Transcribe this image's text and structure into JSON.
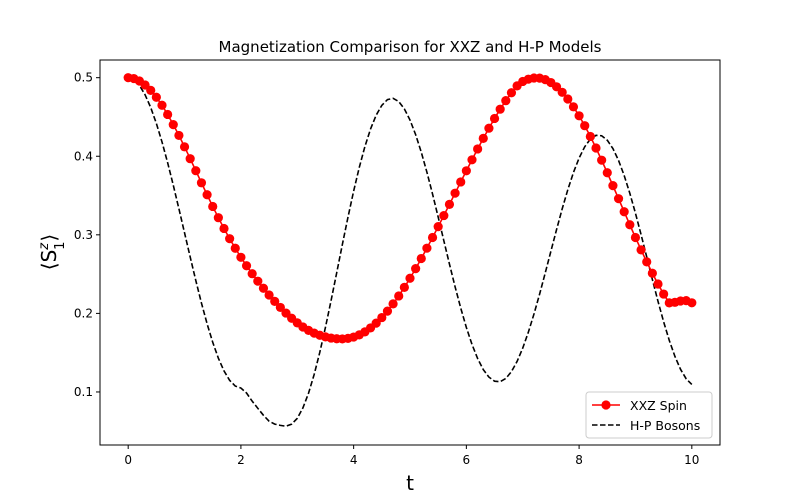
{
  "chart_data": {
    "type": "line",
    "title": "Magnetization Comparison for XXZ and H-P Models",
    "xlabel": "t",
    "ylabel_main": "⟨S",
    "ylabel_sup": "z",
    "ylabel_sub": "1",
    "ylabel_end": "⟩",
    "xlim": [
      -0.5,
      10.5
    ],
    "ylim": [
      0.0325,
      0.5225
    ],
    "x_ticks": [
      0,
      2,
      4,
      6,
      8,
      10
    ],
    "x_tick_labels": [
      "0",
      "2",
      "4",
      "6",
      "8",
      "10"
    ],
    "y_ticks": [
      0.1,
      0.2,
      0.3,
      0.4,
      0.5
    ],
    "y_tick_labels": [
      "0.1",
      "0.2",
      "0.3",
      "0.4",
      "0.5"
    ],
    "grid": false,
    "legend_position": "lower-right",
    "x": [
      0.0,
      0.1,
      0.2,
      0.3,
      0.4,
      0.5,
      0.6,
      0.7,
      0.8,
      0.9,
      1.0,
      1.1,
      1.2,
      1.3,
      1.4,
      1.5,
      1.6,
      1.7,
      1.8,
      1.9,
      2.0,
      2.1,
      2.2,
      2.3,
      2.4,
      2.5,
      2.6,
      2.7,
      2.8,
      2.9,
      3.0,
      3.1,
      3.2,
      3.3,
      3.4,
      3.5,
      3.6,
      3.7,
      3.8,
      3.9,
      4.0,
      4.1,
      4.2,
      4.3,
      4.4,
      4.5,
      4.6,
      4.7,
      4.8,
      4.9,
      5.0,
      5.1,
      5.2,
      5.3,
      5.4,
      5.5,
      5.6,
      5.7,
      5.8,
      5.9,
      6.0,
      6.1,
      6.2,
      6.3,
      6.4,
      6.5,
      6.6,
      6.7,
      6.8,
      6.9,
      7.0,
      7.1,
      7.2,
      7.3,
      7.4,
      7.5,
      7.6,
      7.7,
      7.8,
      7.9,
      8.0,
      8.1,
      8.2,
      8.3,
      8.4,
      8.5,
      8.6,
      8.7,
      8.8,
      8.9,
      9.0,
      9.1,
      9.2,
      9.3,
      9.4,
      9.5,
      9.6,
      9.7,
      9.8,
      9.9,
      10.0
    ],
    "series": [
      {
        "name": "XXZ Spin",
        "color": "#ff0000",
        "style": "solid-with-circle-markers",
        "values": [
          0.5,
          0.4989,
          0.4958,
          0.4907,
          0.4838,
          0.4751,
          0.4649,
          0.4532,
          0.4403,
          0.4265,
          0.412,
          0.3969,
          0.3816,
          0.3662,
          0.351,
          0.3361,
          0.3218,
          0.3081,
          0.2951,
          0.2829,
          0.2714,
          0.2606,
          0.2505,
          0.241,
          0.232,
          0.2234,
          0.2153,
          0.2076,
          0.2004,
          0.1938,
          0.1879,
          0.1827,
          0.1784,
          0.1749,
          0.1722,
          0.1701,
          0.1686,
          0.1677,
          0.1675,
          0.1682,
          0.1699,
          0.1727,
          0.1765,
          0.1815,
          0.1876,
          0.1947,
          0.2029,
          0.2121,
          0.2222,
          0.2331,
          0.2447,
          0.257,
          0.2698,
          0.283,
          0.2966,
          0.3104,
          0.3245,
          0.3387,
          0.353,
          0.3673,
          0.3815,
          0.3955,
          0.4093,
          0.4227,
          0.4357,
          0.4481,
          0.4599,
          0.4708,
          0.4808,
          0.4896,
          0.4952,
          0.4981,
          0.4996,
          0.4994,
          0.4975,
          0.4938,
          0.4884,
          0.4814,
          0.4729,
          0.4629,
          0.4515,
          0.4389,
          0.4252,
          0.4105,
          0.395,
          0.379,
          0.3626,
          0.346,
          0.3294,
          0.3128,
          0.2966,
          0.2808,
          0.2656,
          0.2511,
          0.2374,
          0.2246,
          0.2134,
          0.2141,
          0.2158,
          0.2162,
          0.2135
        ]
      },
      {
        "name": "H-P Bosons",
        "color": "#000000",
        "style": "dashed",
        "values": [
          0.5,
          0.4975,
          0.4902,
          0.4782,
          0.462,
          0.4418,
          0.4182,
          0.3918,
          0.3632,
          0.3332,
          0.3025,
          0.2718,
          0.2418,
          0.2132,
          0.1868,
          0.1632,
          0.143,
          0.1268,
          0.1148,
          0.1075,
          0.105,
          0.0986,
          0.0883,
          0.0792,
          0.0703,
          0.0628,
          0.0591,
          0.0575,
          0.0564,
          0.059,
          0.0664,
          0.0797,
          0.0985,
          0.1223,
          0.1506,
          0.1823,
          0.2164,
          0.2519,
          0.2877,
          0.3226,
          0.3556,
          0.3858,
          0.4124,
          0.4347,
          0.4523,
          0.4648,
          0.4721,
          0.4737,
          0.4696,
          0.4603,
          0.4461,
          0.4275,
          0.4052,
          0.3797,
          0.3519,
          0.3226,
          0.2926,
          0.2628,
          0.2339,
          0.2068,
          0.1821,
          0.1605,
          0.1425,
          0.1285,
          0.1189,
          0.1137,
          0.1131,
          0.1172,
          0.1259,
          0.1389,
          0.1558,
          0.1761,
          0.1993,
          0.2247,
          0.2516,
          0.2792,
          0.3066,
          0.333,
          0.3575,
          0.3793,
          0.3977,
          0.4121,
          0.4219,
          0.4266,
          0.4261,
          0.4204,
          0.4098,
          0.3947,
          0.3755,
          0.3529,
          0.3275,
          0.3002,
          0.2718,
          0.2432,
          0.2154,
          0.1893,
          0.1657,
          0.1453,
          0.1288,
          0.1167,
          0.1096
        ]
      }
    ]
  }
}
